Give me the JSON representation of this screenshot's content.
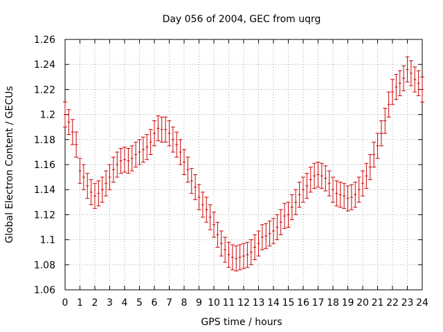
{
  "chart_data": {
    "type": "scatter",
    "title": "Day 056 of 2004, GEC from uqrg",
    "xlabel": "GPS time / hours",
    "ylabel": "Global Electron Content / GECUs",
    "xlim": [
      0,
      24
    ],
    "ylim": [
      1.06,
      1.26
    ],
    "xticks": [
      0,
      1,
      2,
      3,
      4,
      5,
      6,
      7,
      8,
      9,
      10,
      11,
      12,
      13,
      14,
      15,
      16,
      17,
      18,
      19,
      20,
      21,
      22,
      23,
      24
    ],
    "yticks": [
      1.06,
      1.08,
      1.1,
      1.12,
      1.14,
      1.16,
      1.18,
      1.2,
      1.22,
      1.24,
      1.26
    ],
    "ytick_labels": [
      "1.06",
      "1.08",
      "1.1",
      "1.12",
      "1.14",
      "1.16",
      "1.18",
      "1.2",
      "1.22",
      "1.24",
      "1.26"
    ],
    "grid": true,
    "color": "#cc0000",
    "error": 0.01,
    "series": [
      {
        "name": "GEC",
        "x": [
          0,
          0.25,
          0.5,
          0.75,
          1,
          1.25,
          1.5,
          1.75,
          2,
          2.25,
          2.5,
          2.75,
          3,
          3.25,
          3.5,
          3.75,
          4,
          4.25,
          4.5,
          4.75,
          5,
          5.25,
          5.5,
          5.75,
          6,
          6.25,
          6.5,
          6.75,
          7,
          7.25,
          7.5,
          7.75,
          8,
          8.25,
          8.5,
          8.75,
          9,
          9.25,
          9.5,
          9.75,
          10,
          10.25,
          10.5,
          10.75,
          11,
          11.25,
          11.5,
          11.75,
          12,
          12.25,
          12.5,
          12.75,
          13,
          13.25,
          13.5,
          13.75,
          14,
          14.25,
          14.5,
          14.75,
          15,
          15.25,
          15.5,
          15.75,
          16,
          16.25,
          16.5,
          16.75,
          17,
          17.25,
          17.5,
          17.75,
          18,
          18.25,
          18.5,
          18.75,
          19,
          19.25,
          19.5,
          19.75,
          20,
          20.25,
          20.5,
          20.75,
          21,
          21.25,
          21.5,
          21.75,
          22,
          22.25,
          22.5,
          22.75,
          23,
          23.25,
          23.5,
          23.75,
          24
        ],
        "y": [
          1.2,
          1.194,
          1.186,
          1.176,
          1.155,
          1.15,
          1.143,
          1.138,
          1.135,
          1.137,
          1.14,
          1.145,
          1.15,
          1.156,
          1.16,
          1.163,
          1.164,
          1.163,
          1.165,
          1.168,
          1.17,
          1.172,
          1.174,
          1.178,
          1.185,
          1.189,
          1.188,
          1.188,
          1.185,
          1.18,
          1.176,
          1.17,
          1.162,
          1.156,
          1.147,
          1.142,
          1.134,
          1.128,
          1.124,
          1.118,
          1.112,
          1.104,
          1.097,
          1.092,
          1.088,
          1.086,
          1.085,
          1.086,
          1.087,
          1.088,
          1.09,
          1.094,
          1.097,
          1.102,
          1.103,
          1.105,
          1.107,
          1.11,
          1.114,
          1.119,
          1.12,
          1.126,
          1.13,
          1.136,
          1.14,
          1.143,
          1.148,
          1.151,
          1.152,
          1.151,
          1.149,
          1.145,
          1.14,
          1.137,
          1.136,
          1.135,
          1.133,
          1.134,
          1.136,
          1.14,
          1.145,
          1.151,
          1.158,
          1.168,
          1.175,
          1.185,
          1.195,
          1.208,
          1.218,
          1.222,
          1.225,
          1.229,
          1.236,
          1.233,
          1.228,
          1.225,
          1.22
        ]
      }
    ]
  }
}
